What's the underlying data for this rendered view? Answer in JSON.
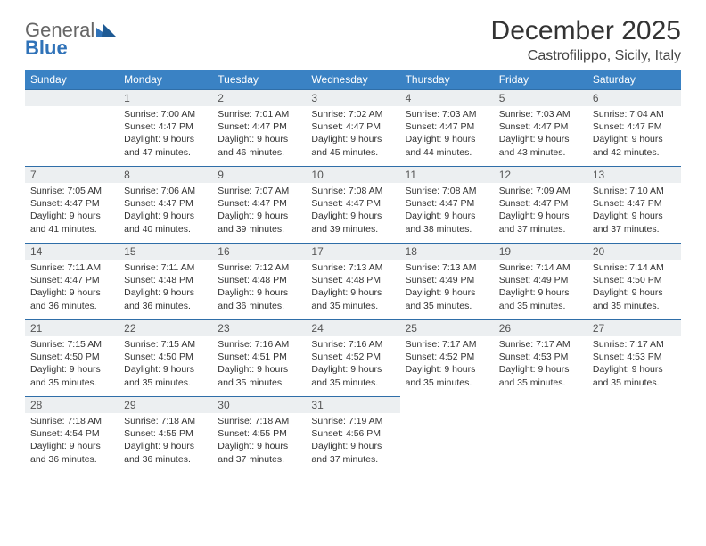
{
  "brand": {
    "general": "General",
    "blue": "Blue"
  },
  "title": "December 2025",
  "location": "Castrofilippo, Sicily, Italy",
  "headerRow": {
    "bg": "#3a82c4",
    "fg": "#ffffff"
  },
  "dayNumRow": {
    "bg": "#eceff1",
    "fg": "#555555"
  },
  "weekdays": [
    "Sunday",
    "Monday",
    "Tuesday",
    "Wednesday",
    "Thursday",
    "Friday",
    "Saturday"
  ],
  "lineColor": "#2f6ea8",
  "startOffset": 1,
  "cellFontSize": 10.5,
  "days": [
    {
      "n": 1,
      "sr": "7:00 AM",
      "ss": "4:47 PM",
      "dl": "9 hours and 47 minutes."
    },
    {
      "n": 2,
      "sr": "7:01 AM",
      "ss": "4:47 PM",
      "dl": "9 hours and 46 minutes."
    },
    {
      "n": 3,
      "sr": "7:02 AM",
      "ss": "4:47 PM",
      "dl": "9 hours and 45 minutes."
    },
    {
      "n": 4,
      "sr": "7:03 AM",
      "ss": "4:47 PM",
      "dl": "9 hours and 44 minutes."
    },
    {
      "n": 5,
      "sr": "7:03 AM",
      "ss": "4:47 PM",
      "dl": "9 hours and 43 minutes."
    },
    {
      "n": 6,
      "sr": "7:04 AM",
      "ss": "4:47 PM",
      "dl": "9 hours and 42 minutes."
    },
    {
      "n": 7,
      "sr": "7:05 AM",
      "ss": "4:47 PM",
      "dl": "9 hours and 41 minutes."
    },
    {
      "n": 8,
      "sr": "7:06 AM",
      "ss": "4:47 PM",
      "dl": "9 hours and 40 minutes."
    },
    {
      "n": 9,
      "sr": "7:07 AM",
      "ss": "4:47 PM",
      "dl": "9 hours and 39 minutes."
    },
    {
      "n": 10,
      "sr": "7:08 AM",
      "ss": "4:47 PM",
      "dl": "9 hours and 39 minutes."
    },
    {
      "n": 11,
      "sr": "7:08 AM",
      "ss": "4:47 PM",
      "dl": "9 hours and 38 minutes."
    },
    {
      "n": 12,
      "sr": "7:09 AM",
      "ss": "4:47 PM",
      "dl": "9 hours and 37 minutes."
    },
    {
      "n": 13,
      "sr": "7:10 AM",
      "ss": "4:47 PM",
      "dl": "9 hours and 37 minutes."
    },
    {
      "n": 14,
      "sr": "7:11 AM",
      "ss": "4:47 PM",
      "dl": "9 hours and 36 minutes."
    },
    {
      "n": 15,
      "sr": "7:11 AM",
      "ss": "4:48 PM",
      "dl": "9 hours and 36 minutes."
    },
    {
      "n": 16,
      "sr": "7:12 AM",
      "ss": "4:48 PM",
      "dl": "9 hours and 36 minutes."
    },
    {
      "n": 17,
      "sr": "7:13 AM",
      "ss": "4:48 PM",
      "dl": "9 hours and 35 minutes."
    },
    {
      "n": 18,
      "sr": "7:13 AM",
      "ss": "4:49 PM",
      "dl": "9 hours and 35 minutes."
    },
    {
      "n": 19,
      "sr": "7:14 AM",
      "ss": "4:49 PM",
      "dl": "9 hours and 35 minutes."
    },
    {
      "n": 20,
      "sr": "7:14 AM",
      "ss": "4:50 PM",
      "dl": "9 hours and 35 minutes."
    },
    {
      "n": 21,
      "sr": "7:15 AM",
      "ss": "4:50 PM",
      "dl": "9 hours and 35 minutes."
    },
    {
      "n": 22,
      "sr": "7:15 AM",
      "ss": "4:50 PM",
      "dl": "9 hours and 35 minutes."
    },
    {
      "n": 23,
      "sr": "7:16 AM",
      "ss": "4:51 PM",
      "dl": "9 hours and 35 minutes."
    },
    {
      "n": 24,
      "sr": "7:16 AM",
      "ss": "4:52 PM",
      "dl": "9 hours and 35 minutes."
    },
    {
      "n": 25,
      "sr": "7:17 AM",
      "ss": "4:52 PM",
      "dl": "9 hours and 35 minutes."
    },
    {
      "n": 26,
      "sr": "7:17 AM",
      "ss": "4:53 PM",
      "dl": "9 hours and 35 minutes."
    },
    {
      "n": 27,
      "sr": "7:17 AM",
      "ss": "4:53 PM",
      "dl": "9 hours and 35 minutes."
    },
    {
      "n": 28,
      "sr": "7:18 AM",
      "ss": "4:54 PM",
      "dl": "9 hours and 36 minutes."
    },
    {
      "n": 29,
      "sr": "7:18 AM",
      "ss": "4:55 PM",
      "dl": "9 hours and 36 minutes."
    },
    {
      "n": 30,
      "sr": "7:18 AM",
      "ss": "4:55 PM",
      "dl": "9 hours and 37 minutes."
    },
    {
      "n": 31,
      "sr": "7:19 AM",
      "ss": "4:56 PM",
      "dl": "9 hours and 37 minutes."
    }
  ],
  "labels": {
    "sunrise": "Sunrise:",
    "sunset": "Sunset:",
    "daylight": "Daylight:"
  }
}
